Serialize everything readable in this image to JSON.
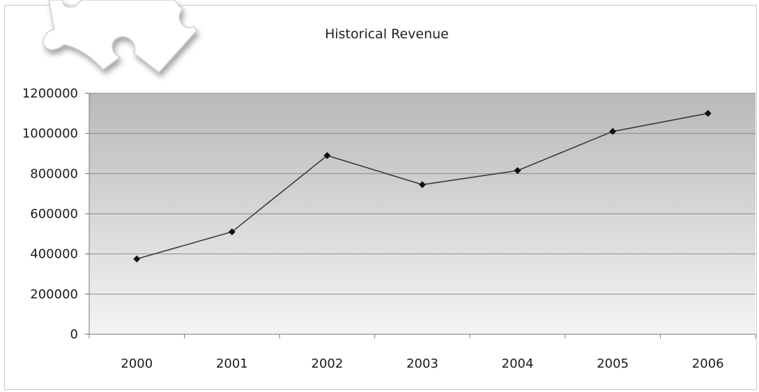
{
  "chart_data": {
    "type": "line",
    "title": "Historical Revenue",
    "xlabel": "",
    "ylabel": "",
    "categories": [
      "2000",
      "2001",
      "2002",
      "2003",
      "2004",
      "2005",
      "2006"
    ],
    "series": [
      {
        "values": [
          375000,
          510000,
          890000,
          745000,
          815000,
          1010000,
          1100000
        ]
      }
    ],
    "ylim": [
      0,
      1200000
    ],
    "yticks": [
      "0",
      "200000",
      "400000",
      "600000",
      "800000",
      "1000000",
      "1200000"
    ],
    "grid": true,
    "legend": "none",
    "colors": {
      "line": "#3a3a3a",
      "marker": "#111111",
      "plot_top": "#b9b9b9",
      "plot_bottom": "#f4f4f4",
      "gridline": "#8a8a8a"
    }
  }
}
